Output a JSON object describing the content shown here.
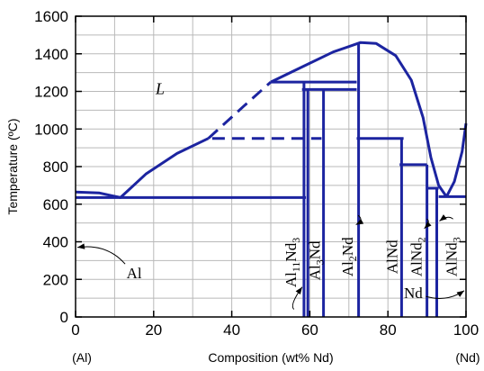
{
  "chart_data": {
    "type": "line",
    "title": "",
    "xlabel": "Composition (wt% Nd)",
    "ylabel": "Temperature (ºC)",
    "xlim": [
      0,
      100
    ],
    "ylim": [
      0,
      1600
    ],
    "x_ticks": [
      0,
      20,
      40,
      60,
      80,
      100
    ],
    "y_ticks": [
      0,
      200,
      400,
      600,
      800,
      1000,
      1200,
      1400,
      1600
    ],
    "grid": true,
    "x_end_labels": {
      "left": "(Al)",
      "right": "(Nd)"
    },
    "series": [
      {
        "style": "solid",
        "points": [
          [
            0,
            665
          ],
          [
            6,
            660
          ],
          [
            11.5,
            635
          ],
          [
            18,
            760
          ],
          [
            26,
            870
          ],
          [
            34,
            950
          ]
        ]
      },
      {
        "style": "dashed",
        "points": [
          [
            34,
            950
          ],
          [
            43,
            1120
          ],
          [
            50,
            1250
          ]
        ]
      },
      {
        "style": "solid",
        "points": [
          [
            50,
            1250
          ],
          [
            58,
            1330
          ],
          [
            66,
            1410
          ],
          [
            73,
            1460
          ],
          [
            77,
            1455
          ],
          [
            82,
            1390
          ],
          [
            86,
            1260
          ],
          [
            89,
            1060
          ],
          [
            91,
            850
          ],
          [
            93,
            700
          ],
          [
            95,
            640
          ]
        ]
      },
      {
        "style": "solid",
        "points": [
          [
            95,
            640
          ],
          [
            97,
            720
          ],
          [
            99,
            880
          ],
          [
            100,
            1030
          ]
        ]
      },
      {
        "style": "solid",
        "points": [
          [
            0,
            635
          ],
          [
            59,
            635
          ]
        ]
      },
      {
        "style": "dashed",
        "points": [
          [
            35,
            950
          ],
          [
            63,
            950
          ]
        ]
      },
      {
        "style": "solid",
        "points": [
          [
            50,
            1250
          ],
          [
            72,
            1250
          ]
        ]
      },
      {
        "style": "solid",
        "points": [
          [
            58,
            1210
          ],
          [
            72,
            1210
          ]
        ]
      },
      {
        "style": "solid",
        "points": [
          [
            72,
            950
          ],
          [
            84,
            950
          ]
        ]
      },
      {
        "style": "solid",
        "points": [
          [
            83,
            810
          ],
          [
            90,
            810
          ]
        ]
      },
      {
        "style": "solid",
        "points": [
          [
            90,
            685
          ],
          [
            93,
            685
          ]
        ]
      },
      {
        "style": "solid",
        "points": [
          [
            93,
            640
          ],
          [
            100,
            640
          ]
        ]
      },
      {
        "style": "solid",
        "points": [
          [
            58.5,
            0
          ],
          [
            58.5,
            1250
          ]
        ]
      },
      {
        "style": "solid",
        "points": [
          [
            59.5,
            0
          ],
          [
            59.5,
            1210
          ]
        ]
      },
      {
        "style": "solid",
        "points": [
          [
            63.5,
            0
          ],
          [
            63.5,
            1210
          ]
        ]
      },
      {
        "style": "solid",
        "points": [
          [
            72.5,
            0
          ],
          [
            72.5,
            1460
          ]
        ]
      },
      {
        "style": "solid",
        "points": [
          [
            83.5,
            0
          ],
          [
            83.5,
            950
          ]
        ]
      },
      {
        "style": "solid",
        "points": [
          [
            90,
            0
          ],
          [
            90,
            810
          ]
        ]
      },
      {
        "style": "solid",
        "points": [
          [
            92.5,
            0
          ],
          [
            92.5,
            685
          ]
        ]
      }
    ],
    "annotations": [
      {
        "text": "L",
        "x": 20.5,
        "y": 1185,
        "kind": "region"
      },
      {
        "text": "Al",
        "kind": "phase",
        "x": 15,
        "y": 205,
        "arrow_to": [
          0,
          370
        ]
      },
      {
        "text": "Nd",
        "kind": "phase",
        "x": 86.5,
        "y": 100,
        "arrow_to": [
          100,
          140
        ]
      },
      {
        "text": "Al11Nd3",
        "main": "Al",
        "sub1": "11",
        "mid": "Nd",
        "sub2": "3",
        "kind": "compound",
        "x": 56.4,
        "y": 290,
        "arrow_to": [
          58.5,
          150
        ]
      },
      {
        "text": "Al3Nd",
        "main": "Al",
        "sub1": "3",
        "mid": "Nd",
        "sub2": "",
        "kind": "compound",
        "x": 62.5,
        "y": 300
      },
      {
        "text": "Al2Nd",
        "main": "Al",
        "sub1": "2",
        "mid": "Nd",
        "sub2": "",
        "kind": "compound",
        "x": 71.0,
        "y": 320,
        "arrow_to": [
          72.5,
          500
        ]
      },
      {
        "text": "AlNd",
        "main": "AlNd",
        "sub1": "",
        "mid": "",
        "sub2": "",
        "kind": "compound",
        "x": 82.4,
        "y": 320
      },
      {
        "text": "AlNd2",
        "main": "AlNd",
        "sub1": "2",
        "mid": "",
        "sub2": "",
        "kind": "compound",
        "x": 88.6,
        "y": 320,
        "arrow_to": [
          90,
          480
        ]
      },
      {
        "text": "AlNd3",
        "main": "AlNd",
        "sub1": "3",
        "mid": "",
        "sub2": "",
        "kind": "compound",
        "x": 97.6,
        "y": 320,
        "arrow_to": [
          92.5,
          520
        ]
      }
    ]
  }
}
